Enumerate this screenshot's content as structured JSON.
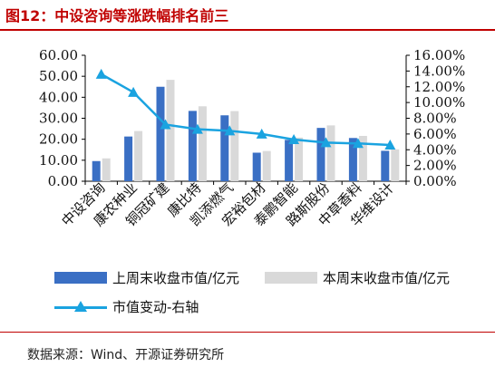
{
  "header": {
    "title": "图12：中设咨询等涨跌幅排名前三"
  },
  "footer": {
    "source": "数据来源：Wind、开源证券研究所"
  },
  "colors": {
    "current": "#3a6fc4",
    "last": "#d9d9d9",
    "change": "#1aa3e0",
    "accent": "#c00000"
  },
  "chart_data": {
    "type": "bar",
    "categories": [
      "中设咨询",
      "康农种业",
      "铜冠矿建",
      "康比特",
      "凯添燃气",
      "宏裕包材",
      "泰鹏智能",
      "路斯股份",
      "中草香料",
      "华维设计"
    ],
    "series": [
      {
        "name": "上周末收盘市值/亿元",
        "type": "bar",
        "axis": "left",
        "values": [
          9.6,
          21.3,
          45.0,
          33.5,
          31.4,
          13.6,
          19.7,
          25.4,
          20.6,
          14.5
        ]
      },
      {
        "name": "本周末收盘市值/亿元",
        "type": "bar",
        "axis": "left",
        "values": [
          10.9,
          23.9,
          48.3,
          35.7,
          33.4,
          14.4,
          20.8,
          26.6,
          21.6,
          15.2
        ]
      },
      {
        "name": "市值变动-右轴",
        "type": "line",
        "axis": "right",
        "values": [
          13.6,
          11.3,
          7.2,
          6.6,
          6.4,
          6.0,
          5.3,
          4.9,
          4.8,
          4.6
        ]
      }
    ],
    "y_left": {
      "min": 0,
      "max": 60,
      "step": 10,
      "tick_labels": [
        "0.00",
        "10.00",
        "20.00",
        "30.00",
        "40.00",
        "50.00",
        "60.00"
      ]
    },
    "y_right": {
      "min": 0,
      "max": 16,
      "step": 2,
      "tick_labels": [
        "0.00%",
        "2.00%",
        "4.00%",
        "6.00%",
        "8.00%",
        "10.00%",
        "12.00%",
        "14.00%",
        "16.00%"
      ]
    },
    "grid": false,
    "legend_position": "bottom"
  }
}
